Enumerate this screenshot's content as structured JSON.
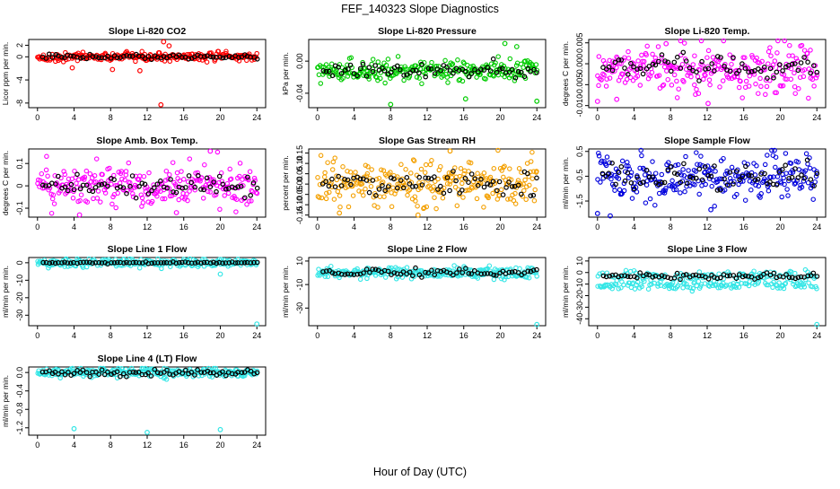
{
  "figure": {
    "title": "FEF_140323  Slope Diagnostics",
    "xlabel": "Hour of Day (UTC)"
  },
  "chart_data": [
    {
      "type": "scatter",
      "title": "Slope Li-820 CO2",
      "ylabel": "Licor ppm per min.",
      "color": "#ff0000",
      "xlim": [
        0,
        24
      ],
      "xticks": [
        0,
        4,
        8,
        12,
        16,
        20,
        24
      ],
      "ylim": [
        -8.8,
        3.0
      ],
      "yticks": [
        2,
        0,
        -4,
        -8
      ],
      "ytick_labels": [
        "2",
        "0",
        "-4",
        "-8"
      ],
      "band": {
        "center": 0.0,
        "spread": 0.35,
        "black_spread": 0.2
      },
      "outliers": [
        {
          "x": 13.5,
          "y": -8.3
        },
        {
          "x": 13.8,
          "y": 2.6
        },
        {
          "x": 14.4,
          "y": 1.9
        },
        {
          "x": 11.2,
          "y": -2.4
        },
        {
          "x": 8.2,
          "y": -2.2
        },
        {
          "x": 3.8,
          "y": -1.9
        }
      ]
    },
    {
      "type": "scatter",
      "title": "Slope Li-820 Pressure",
      "ylabel": "kPa per min.",
      "color": "#00cc00",
      "xlim": [
        0,
        24
      ],
      "xticks": [
        0,
        4,
        8,
        12,
        16,
        20,
        24
      ],
      "ylim": [
        -0.058,
        0.027
      ],
      "yticks": [
        0.0,
        -0.04
      ],
      "ytick_labels": [
        "0.00",
        "-0.04"
      ],
      "band": {
        "center": -0.012,
        "spread": 0.006,
        "black_spread": 0.004
      },
      "outliers": [
        {
          "x": 8.0,
          "y": -0.054
        },
        {
          "x": 16.2,
          "y": -0.047
        },
        {
          "x": 24.0,
          "y": -0.05
        },
        {
          "x": 20.5,
          "y": 0.022
        },
        {
          "x": 21.8,
          "y": 0.018
        }
      ]
    },
    {
      "type": "scatter",
      "title": "Slope Li-820 Temp.",
      "ylabel": "degrees C per min.",
      "color": "#ff00ff",
      "xlim": [
        0,
        24
      ],
      "xticks": [
        0,
        4,
        8,
        12,
        16,
        20,
        24
      ],
      "ylim": [
        -0.0105,
        0.0058
      ],
      "yticks": [
        0.005,
        0.0,
        -0.005,
        -0.01
      ],
      "ytick_labels": [
        "0.005",
        "0.000",
        "-0.005",
        "-0.010"
      ],
      "band": {
        "center": -0.001,
        "spread": 0.0028,
        "black_spread": 0.0014
      },
      "outliers": [
        {
          "x": 0.0,
          "y": -0.009
        },
        {
          "x": 2.1,
          "y": -0.0085
        },
        {
          "x": 12.1,
          "y": -0.0095
        },
        {
          "x": 7.5,
          "y": 0.0048
        }
      ]
    },
    {
      "type": "scatter",
      "title": "Slope Amb. Box Temp.",
      "ylabel": "degrees C per min.",
      "color": "#ff00ff",
      "xlim": [
        0,
        24
      ],
      "xticks": [
        0,
        4,
        8,
        12,
        16,
        20,
        24
      ],
      "ylim": [
        -0.14,
        0.165
      ],
      "yticks": [
        0.1,
        0.0,
        -0.1
      ],
      "ytick_labels": [
        "0.1",
        "0",
        "-0.1"
      ],
      "band": {
        "center": 0.0,
        "spread": 0.045,
        "black_spread": 0.03
      },
      "outliers": [
        {
          "x": 18.9,
          "y": 0.155
        },
        {
          "x": 4.6,
          "y": -0.13
        },
        {
          "x": 15.2,
          "y": -0.12
        }
      ]
    },
    {
      "type": "scatter",
      "title": "Slope Gas Stream RH",
      "ylabel": "percent per min.",
      "color": "#f4a000",
      "xlim": [
        0,
        24
      ],
      "xticks": [
        0,
        4,
        8,
        12,
        16,
        20,
        24
      ],
      "ylim": [
        -0.16,
        0.17
      ],
      "yticks": [
        0.15,
        0.1,
        0.05,
        0.0,
        -0.05,
        -0.1,
        -0.15
      ],
      "ytick_labels": [
        "0.15",
        "0.10",
        "0.05",
        "0.00",
        "-0.05",
        "-0.10",
        "-0.15"
      ],
      "band": {
        "center": 0.0,
        "spread": 0.05,
        "black_spread": 0.03
      },
      "outliers": [
        {
          "x": 11.0,
          "y": -0.15
        },
        {
          "x": 2.4,
          "y": -0.14
        },
        {
          "x": 14.5,
          "y": 0.16
        }
      ]
    },
    {
      "type": "scatter",
      "title": "Slope Sample Flow",
      "ylabel": "ml/min per min.",
      "color": "#0000dd",
      "xlim": [
        0,
        24
      ],
      "xticks": [
        0,
        4,
        8,
        12,
        16,
        20,
        24
      ],
      "ylim": [
        -2.15,
        0.6
      ],
      "yticks": [
        0.5,
        -0.5,
        -1.5
      ],
      "ytick_labels": [
        "0.5",
        "-0.5",
        "-1.5"
      ],
      "band": {
        "center": -0.55,
        "spread": 0.45,
        "black_spread": 0.25
      },
      "outliers": [
        {
          "x": 0.0,
          "y": -2.0
        },
        {
          "x": 1.4,
          "y": -2.1
        },
        {
          "x": 12.4,
          "y": -1.85
        }
      ]
    },
    {
      "type": "scatter",
      "title": "Slope Line 1 Flow",
      "ylabel": "ml/min per min.",
      "color": "#33e6e6",
      "xlim": [
        0,
        24
      ],
      "xticks": [
        0,
        4,
        8,
        12,
        16,
        20,
        24
      ],
      "ylim": [
        -36,
        3
      ],
      "yticks": [
        0,
        -10,
        -20,
        -30
      ],
      "ytick_labels": [
        "0",
        "-10",
        "-20",
        "-30"
      ],
      "band": {
        "center": 0.0,
        "spread": 1.2,
        "black_spread": 0.2
      },
      "outliers": [
        {
          "x": 24.0,
          "y": -35.0
        },
        {
          "x": 20.0,
          "y": -6.5
        }
      ]
    },
    {
      "type": "scatter",
      "title": "Slope Line 2 Flow",
      "ylabel": "ml/min per min.",
      "color": "#33e6e6",
      "xlim": [
        0,
        24
      ],
      "xticks": [
        0,
        4,
        8,
        12,
        16,
        20,
        24
      ],
      "ylim": [
        -45,
        13
      ],
      "yticks": [
        10,
        -10,
        -30
      ],
      "ytick_labels": [
        "10",
        "-10",
        "-30"
      ],
      "band": {
        "center": 0.0,
        "spread": 2.2,
        "black_spread": 1.6
      },
      "outliers": [
        {
          "x": 24.0,
          "y": -44.0
        }
      ]
    },
    {
      "type": "scatter",
      "title": "Slope Line 3 Flow",
      "ylabel": "ml/min per min.",
      "color": "#33e6e6",
      "xlim": [
        0,
        24
      ],
      "xticks": [
        0,
        4,
        8,
        12,
        16,
        20,
        24
      ],
      "ylim": [
        -46,
        13
      ],
      "yticks": [
        10,
        0,
        -10,
        -20,
        -30,
        -40
      ],
      "ytick_labels": [
        "10",
        "0",
        "-10",
        "-20",
        "-30",
        "-40"
      ],
      "band": {
        "center": -3.0,
        "spread": 2.0,
        "black_spread": 1.2,
        "secondary_center": -11.0,
        "secondary_spread": 2.0
      },
      "outliers": [
        {
          "x": 24.0,
          "y": -45.0
        }
      ]
    },
    {
      "type": "scatter",
      "title": "Slope Line 4 (LT) Flow",
      "ylabel": "ml/min per min.",
      "color": "#33e6e6",
      "xlim": [
        0,
        24
      ],
      "xticks": [
        0,
        4,
        8,
        12,
        16,
        20,
        24
      ],
      "ylim": [
        -1.36,
        0.12
      ],
      "yticks": [
        0.0,
        -0.4,
        -0.8,
        -1.2
      ],
      "ytick_labels": [
        "0.0",
        "-0.4",
        "-0.8",
        "-1.2"
      ],
      "band": {
        "center": 0.0,
        "spread": 0.05,
        "black_spread": 0.04
      },
      "outliers": [
        {
          "x": 4.0,
          "y": -1.22
        },
        {
          "x": 12.0,
          "y": -1.3
        },
        {
          "x": 20.0,
          "y": -1.24
        }
      ]
    }
  ]
}
